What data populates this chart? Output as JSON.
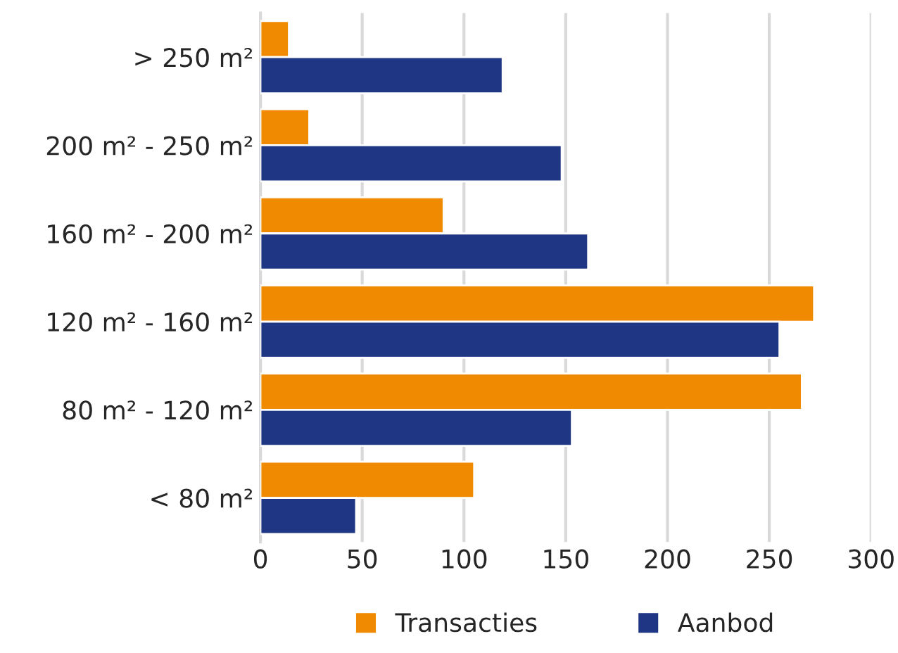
{
  "chart_data": {
    "type": "bar",
    "orientation": "horizontal",
    "categories": [
      "> 250 m²",
      "200 m² - 250 m²",
      "160 m² - 200 m²",
      "120 m² - 160 m²",
      "80 m² - 120 m²",
      "< 80 m²"
    ],
    "series": [
      {
        "name": "Transacties",
        "color": "#f08a00",
        "values": [
          14,
          24,
          90,
          272,
          266,
          105
        ]
      },
      {
        "name": "Aanbod",
        "color": "#1f3684",
        "values": [
          119,
          148,
          161,
          255,
          153,
          47
        ]
      }
    ],
    "xlim": [
      0,
      300
    ],
    "xticks": [
      0,
      50,
      100,
      150,
      200,
      250,
      300
    ],
    "grid": "x",
    "legend": "bottom"
  }
}
